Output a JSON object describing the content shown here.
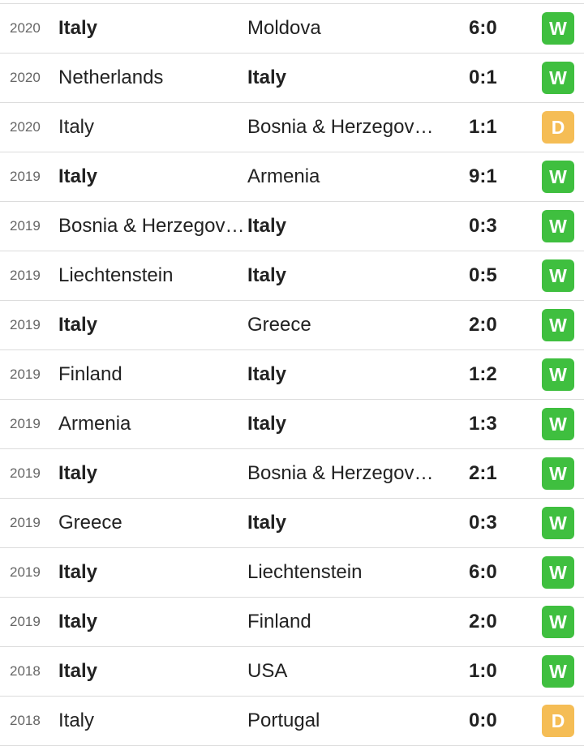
{
  "colors": {
    "W": "#3fbf3f",
    "D": "#f5bd55",
    "L": "#e04040"
  },
  "matches": [
    {
      "year": "2020",
      "home": "Italy",
      "away": "Moldova",
      "score": "6:0",
      "result": "W",
      "winner": "home"
    },
    {
      "year": "2020",
      "home": "Netherlands",
      "away": "Italy",
      "score": "0:1",
      "result": "W",
      "winner": "away"
    },
    {
      "year": "2020",
      "home": "Italy",
      "away": "Bosnia & Herzegovina",
      "score": "1:1",
      "result": "D",
      "winner": "none"
    },
    {
      "year": "2019",
      "home": "Italy",
      "away": "Armenia",
      "score": "9:1",
      "result": "W",
      "winner": "home"
    },
    {
      "year": "2019",
      "home": "Bosnia & Herzegovina",
      "away": "Italy",
      "score": "0:3",
      "result": "W",
      "winner": "away"
    },
    {
      "year": "2019",
      "home": "Liechtenstein",
      "away": "Italy",
      "score": "0:5",
      "result": "W",
      "winner": "away"
    },
    {
      "year": "2019",
      "home": "Italy",
      "away": "Greece",
      "score": "2:0",
      "result": "W",
      "winner": "home"
    },
    {
      "year": "2019",
      "home": "Finland",
      "away": "Italy",
      "score": "1:2",
      "result": "W",
      "winner": "away"
    },
    {
      "year": "2019",
      "home": "Armenia",
      "away": "Italy",
      "score": "1:3",
      "result": "W",
      "winner": "away"
    },
    {
      "year": "2019",
      "home": "Italy",
      "away": "Bosnia & Herzegovina",
      "score": "2:1",
      "result": "W",
      "winner": "home"
    },
    {
      "year": "2019",
      "home": "Greece",
      "away": "Italy",
      "score": "0:3",
      "result": "W",
      "winner": "away"
    },
    {
      "year": "2019",
      "home": "Italy",
      "away": "Liechtenstein",
      "score": "6:0",
      "result": "W",
      "winner": "home"
    },
    {
      "year": "2019",
      "home": "Italy",
      "away": "Finland",
      "score": "2:0",
      "result": "W",
      "winner": "home"
    },
    {
      "year": "2018",
      "home": "Italy",
      "away": "USA",
      "score": "1:0",
      "result": "W",
      "winner": "home"
    },
    {
      "year": "2018",
      "home": "Italy",
      "away": "Portugal",
      "score": "0:0",
      "result": "D",
      "winner": "none"
    }
  ]
}
